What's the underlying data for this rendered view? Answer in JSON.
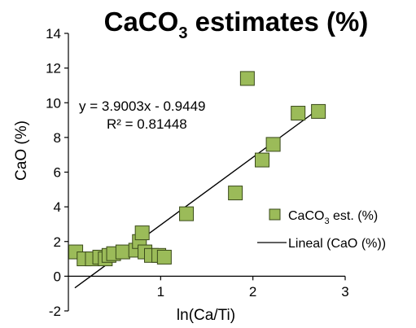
{
  "chart_data": {
    "type": "scatter",
    "title": {
      "main": "CaCO",
      "sub": "3",
      "rest": " estimates (%)"
    },
    "xlabel": "ln(Ca/Ti)",
    "ylabel": "CaO (%)",
    "xlim": [
      0,
      3
    ],
    "ylim": [
      -2,
      14
    ],
    "x_ticks": [
      "1",
      "2",
      "3"
    ],
    "y_ticks": [
      "-2",
      "0",
      "2",
      "4",
      "6",
      "8",
      "10",
      "12",
      "14"
    ],
    "grid": false,
    "legend_position": "right",
    "colors": {
      "marker_fill": "#9bbb59",
      "marker_edge": "#3a4a1a",
      "trendline": "#000000"
    },
    "series": [
      {
        "name": {
          "main": "CaCO",
          "sub": "3",
          "rest": " est. (%)"
        },
        "points": [
          [
            0.08,
            1.4
          ],
          [
            0.17,
            1.0
          ],
          [
            0.26,
            1.0
          ],
          [
            0.34,
            1.1
          ],
          [
            0.4,
            1.0
          ],
          [
            0.44,
            1.2
          ],
          [
            0.49,
            1.3
          ],
          [
            0.59,
            1.4
          ],
          [
            0.73,
            1.5
          ],
          [
            0.77,
            2.0
          ],
          [
            0.8,
            2.5
          ],
          [
            0.83,
            1.4
          ],
          [
            0.9,
            1.2
          ],
          [
            0.98,
            1.2
          ],
          [
            1.04,
            1.1
          ],
          [
            1.28,
            3.6
          ],
          [
            1.81,
            4.8
          ],
          [
            1.94,
            11.4
          ],
          [
            2.1,
            6.7
          ],
          [
            2.22,
            7.6
          ],
          [
            2.49,
            9.4
          ],
          [
            2.71,
            9.5
          ]
        ]
      }
    ],
    "trendline": {
      "name": "Lineal (CaO (%))",
      "slope": 3.9003,
      "intercept": -0.9449,
      "x_range": [
        0.07,
        2.73
      ],
      "equation": "y = 3.9003x - 0.9449",
      "r2": "R² = 0.81448"
    }
  }
}
